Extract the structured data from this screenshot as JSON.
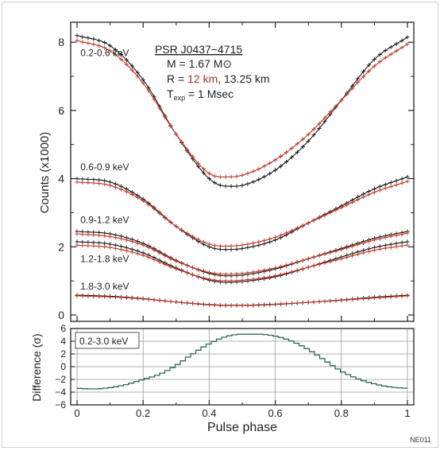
{
  "chart_data": [
    {
      "type": "line",
      "panel": "top",
      "xlabel": "",
      "ylabel": "Counts (x1000)",
      "xlim": [
        0,
        1
      ],
      "ylim": [
        0,
        8.4
      ],
      "xticks": [
        0,
        0.2,
        0.4,
        0.6,
        0.8,
        1
      ],
      "yticks": [
        0,
        2,
        4,
        6,
        8
      ],
      "grid": false,
      "annotation": {
        "title": "PSR J0437−4715",
        "mass_line": "M = 1.67 M⊙",
        "radius_prefix": "R = ",
        "radius_red": "12 km",
        "radius_suffix": ", 13.25 km",
        "time_prefix": "T",
        "time_sub": "exp",
        "time_suffix": " = 1 Msec"
      },
      "series": [
        {
          "name": "0.2-0.6 keV",
          "color": "#1a1a1a",
          "x": [
            0,
            0.1,
            0.2,
            0.3,
            0.4,
            0.45,
            0.5,
            0.6,
            0.7,
            0.8,
            0.9,
            1.0
          ],
          "y": [
            8.2,
            7.9,
            6.9,
            5.3,
            4.0,
            3.78,
            3.8,
            4.25,
            5.1,
            6.3,
            7.5,
            8.15
          ]
        },
        {
          "name": "0.2-0.6 keV (R = 12 km)",
          "color": "#c0392b",
          "x": [
            0,
            0.1,
            0.2,
            0.3,
            0.4,
            0.45,
            0.5,
            0.6,
            0.7,
            0.8,
            0.9,
            1.0
          ],
          "y": [
            8.05,
            7.75,
            6.8,
            5.3,
            4.15,
            4.05,
            4.1,
            4.55,
            5.3,
            6.3,
            7.3,
            7.95
          ]
        },
        {
          "name": "0.6-0.9 keV",
          "color": "#1a1a1a",
          "x": [
            0,
            0.1,
            0.2,
            0.3,
            0.4,
            0.45,
            0.5,
            0.6,
            0.7,
            0.8,
            0.9,
            1.0
          ],
          "y": [
            4.0,
            3.9,
            3.4,
            2.6,
            2.0,
            1.92,
            1.95,
            2.2,
            2.7,
            3.2,
            3.7,
            4.05
          ]
        },
        {
          "name": "0.6-0.9 keV (R = 12 km)",
          "color": "#c0392b",
          "x": [
            0,
            0.1,
            0.2,
            0.3,
            0.4,
            0.45,
            0.5,
            0.6,
            0.7,
            0.8,
            0.9,
            1.0
          ],
          "y": [
            3.9,
            3.8,
            3.35,
            2.6,
            2.08,
            2.02,
            2.05,
            2.28,
            2.7,
            3.15,
            3.6,
            3.92
          ]
        },
        {
          "name": "0.9-1.2 keV",
          "color": "#1a1a1a",
          "x": [
            0,
            0.1,
            0.2,
            0.3,
            0.4,
            0.45,
            0.5,
            0.6,
            0.7,
            0.8,
            0.9,
            1.0
          ],
          "y": [
            2.45,
            2.38,
            2.1,
            1.6,
            1.22,
            1.15,
            1.17,
            1.35,
            1.65,
            1.95,
            2.25,
            2.45
          ]
        },
        {
          "name": "0.9-1.2 keV (R = 12 km)",
          "color": "#c0392b",
          "x": [
            0,
            0.1,
            0.2,
            0.3,
            0.4,
            0.45,
            0.5,
            0.6,
            0.7,
            0.8,
            0.9,
            1.0
          ],
          "y": [
            2.38,
            2.3,
            2.05,
            1.58,
            1.25,
            1.2,
            1.22,
            1.38,
            1.65,
            1.92,
            2.2,
            2.4
          ]
        },
        {
          "name": "1.2-1.8 keV",
          "color": "#1a1a1a",
          "x": [
            0,
            0.1,
            0.2,
            0.3,
            0.4,
            0.45,
            0.5,
            0.6,
            0.7,
            0.8,
            0.9,
            1.0
          ],
          "y": [
            2.15,
            2.08,
            1.82,
            1.38,
            1.02,
            0.96,
            0.98,
            1.12,
            1.4,
            1.7,
            1.98,
            2.15
          ]
        },
        {
          "name": "1.2-1.8 keV (R = 12 km)",
          "color": "#c0392b",
          "x": [
            0,
            0.1,
            0.2,
            0.3,
            0.4,
            0.45,
            0.5,
            0.6,
            0.7,
            0.8,
            0.9,
            1.0
          ],
          "y": [
            2.05,
            1.98,
            1.75,
            1.35,
            1.05,
            1.0,
            1.02,
            1.15,
            1.4,
            1.65,
            1.9,
            2.05
          ]
        },
        {
          "name": "1.8-3.0 keV",
          "color": "#1a1a1a",
          "x": [
            0,
            0.1,
            0.2,
            0.3,
            0.4,
            0.45,
            0.5,
            0.6,
            0.7,
            0.8,
            0.9,
            1.0
          ],
          "y": [
            0.58,
            0.55,
            0.48,
            0.38,
            0.3,
            0.28,
            0.28,
            0.31,
            0.37,
            0.44,
            0.52,
            0.58
          ]
        },
        {
          "name": "1.8-3.0 keV (R = 12 km)",
          "color": "#c0392b",
          "x": [
            0,
            0.1,
            0.2,
            0.3,
            0.4,
            0.45,
            0.5,
            0.6,
            0.7,
            0.8,
            0.9,
            1.0
          ],
          "y": [
            0.56,
            0.53,
            0.47,
            0.38,
            0.31,
            0.29,
            0.29,
            0.32,
            0.37,
            0.43,
            0.5,
            0.56
          ]
        }
      ],
      "band_labels": [
        {
          "text": "0.2-0.6 keV",
          "x": 0.01,
          "y": 7.6
        },
        {
          "text": "0.6-0.9 keV",
          "x": 0.01,
          "y": 4.25
        },
        {
          "text": "0.9-1.2 keV",
          "x": 0.01,
          "y": 2.7
        },
        {
          "text": "1.2-1.8 keV",
          "x": 0.01,
          "y": 1.55
        },
        {
          "text": "1.8-3.0 keV",
          "x": 0.01,
          "y": 0.75
        }
      ]
    },
    {
      "type": "line",
      "panel": "bottom",
      "xlabel": "Pulse phase",
      "ylabel": "Difference (σ)",
      "xlim": [
        0,
        1
      ],
      "ylim": [
        -6,
        6
      ],
      "xticks": [
        0,
        0.2,
        0.4,
        0.6,
        0.8,
        1
      ],
      "yticks": [
        -6,
        -4,
        -2,
        0,
        2,
        4,
        6
      ],
      "grid": true,
      "legend": "0.2-3.0 keV",
      "series": [
        {
          "name": "0.2-3.0 keV",
          "color": "#2e6b4f",
          "x": [
            0,
            0.05,
            0.1,
            0.15,
            0.2,
            0.25,
            0.3,
            0.35,
            0.4,
            0.45,
            0.5,
            0.55,
            0.6,
            0.65,
            0.7,
            0.75,
            0.8,
            0.85,
            0.9,
            0.95,
            1.0
          ],
          "y": [
            -3.4,
            -3.5,
            -3.3,
            -2.8,
            -2.0,
            -1.2,
            0.2,
            2.0,
            3.6,
            4.7,
            5.1,
            5.1,
            4.8,
            4.0,
            2.7,
            1.0,
            -0.7,
            -1.9,
            -2.7,
            -3.2,
            -3.4
          ]
        }
      ]
    }
  ],
  "ticklabels": {
    "top_y": [
      "0",
      "2",
      "4",
      "6",
      "8"
    ],
    "bottom_y": [
      "6",
      "4",
      "2",
      "0",
      "−2",
      "−4",
      "−6"
    ],
    "x": [
      "0",
      "0.2",
      "0.4",
      "0.6",
      "0.8",
      "1"
    ]
  },
  "footer_code": "NE011"
}
